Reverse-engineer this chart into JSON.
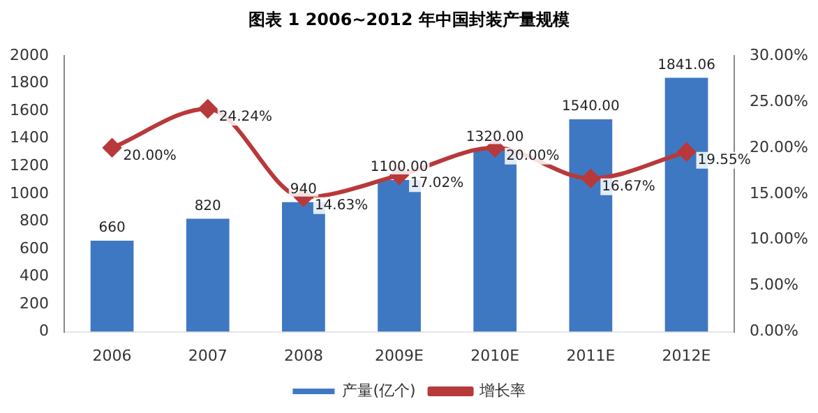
{
  "chart_data": {
    "type": "bar",
    "title": "图表 1  2006~2012 年中国封装产量规模",
    "categories": [
      "2006",
      "2007",
      "2008",
      "2009E",
      "2010E",
      "2011E",
      "2012E"
    ],
    "series": [
      {
        "name": "产量(亿个)",
        "color": "#3f78c2",
        "values": [
          660,
          820,
          940,
          1100,
          1320,
          1540,
          1841.06
        ],
        "value_labels": [
          "660",
          "820",
          "940",
          "1100.00",
          "1320.00",
          "1540.00",
          "1841.06"
        ]
      },
      {
        "name": "增长率",
        "type": "line",
        "axis": "y2",
        "color": "#b8393a",
        "marker": "diamond",
        "values": [
          20.0,
          24.24,
          14.63,
          17.02,
          20.0,
          16.67,
          19.55
        ],
        "value_labels": [
          "20.00%",
          "24.24%",
          "14.63%",
          "17.02%",
          "20.00%",
          "16.67%",
          "19.55%"
        ]
      }
    ],
    "ylim": [
      0,
      2000
    ],
    "yticks": [
      0,
      200,
      400,
      600,
      800,
      1000,
      1200,
      1400,
      1600,
      1800,
      2000
    ],
    "y2lim": [
      0,
      30
    ],
    "y2ticks": [
      {
        "value": 0,
        "label": "0.00%"
      },
      {
        "value": 5,
        "label": "5.00%"
      },
      {
        "value": 10,
        "label": "10.00%"
      },
      {
        "value": 15,
        "label": "15.00%"
      },
      {
        "value": 20,
        "label": "20.00%"
      },
      {
        "value": 25,
        "label": "25.00%"
      },
      {
        "value": 30,
        "label": "30.00%"
      }
    ],
    "grid": false,
    "legend": "bottom"
  }
}
